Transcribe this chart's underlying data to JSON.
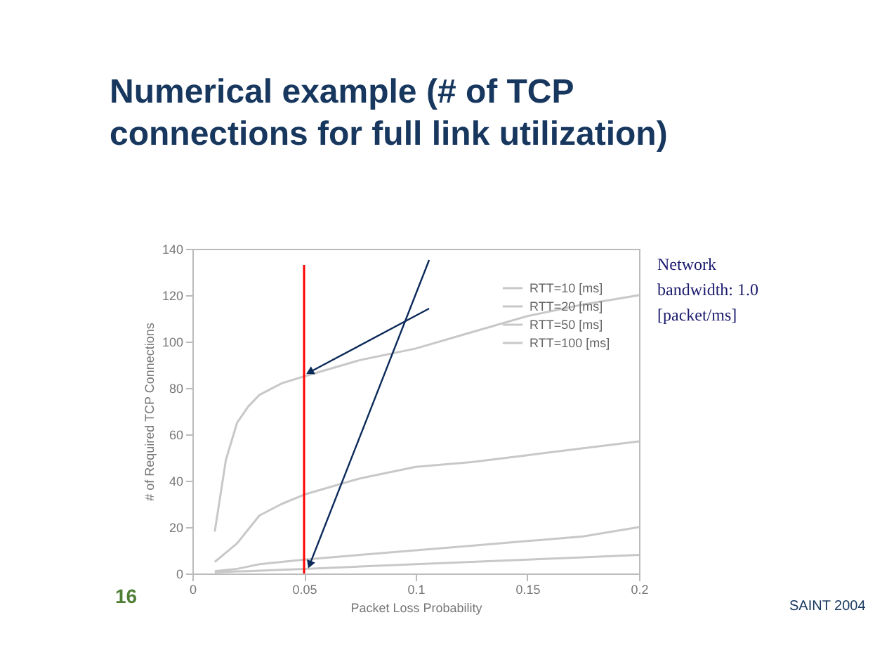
{
  "chart_data": {
    "type": "line",
    "title": "Numerical example (# of TCP\nconnections for full link utilization)",
    "xlabel": "Packet Loss Probability",
    "ylabel": "# of Required TCP Connections",
    "x": [
      0.01,
      0.015,
      0.02,
      0.025,
      0.03,
      0.04,
      0.05,
      0.075,
      0.1,
      0.125,
      0.15,
      0.175,
      0.2
    ],
    "series": [
      {
        "name": "RTT=10 [ms]",
        "color": "#c8c8c8",
        "values": [
          0.5,
          0.7,
          0.9,
          1,
          1.2,
          1.6,
          2,
          3,
          4,
          5,
          6,
          7,
          8
        ]
      },
      {
        "name": "RTT=20 [ms]",
        "color": "#c8c8c8",
        "values": [
          1,
          1.5,
          2,
          3,
          4,
          5,
          6,
          8,
          10,
          12,
          14,
          16,
          20
        ]
      },
      {
        "name": "RTT=50 [ms]",
        "color": "#c8c8c8",
        "values": [
          5,
          9,
          13,
          19,
          25,
          30,
          34,
          41,
          46,
          48,
          51,
          54,
          57
        ]
      },
      {
        "name": "RTT=100 [ms]",
        "color": "#c8c8c8",
        "values": [
          18,
          49,
          65,
          72,
          77,
          82,
          85,
          92,
          97,
          104,
          111,
          116,
          120
        ]
      }
    ],
    "xlim": [
      0,
      0.2
    ],
    "xticks": [
      0,
      0.05,
      0.1,
      0.15,
      0.2
    ],
    "ylim": [
      0,
      140
    ],
    "yticks": [
      0,
      20,
      40,
      60,
      80,
      100,
      120,
      140
    ],
    "grid": false,
    "legend": "top right",
    "marker": "none",
    "line_style": "solid",
    "ref_lines": [
      {
        "axis": "x",
        "value": 0.05,
        "color": "#ff0000"
      }
    ],
    "annotations": [
      "Network\nbandwidth:   1.0\n[packet/ms]",
      "SAINT 2004",
      "16"
    ]
  }
}
